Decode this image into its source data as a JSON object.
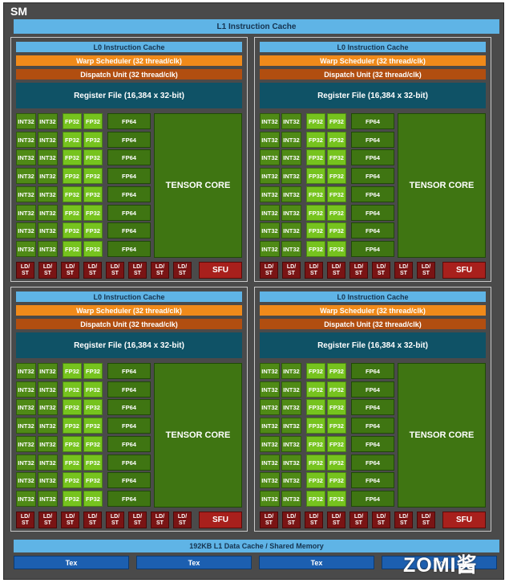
{
  "sm_label": "SM",
  "l1_instruction_cache": "L1 Instruction Cache",
  "quadrants": [
    {
      "l0_cache": "L0 Instruction Cache",
      "warp_scheduler": "Warp Scheduler (32 thread/clk)",
      "dispatch_unit": "Dispatch Unit (32 thread/clk)",
      "register_file": "Register File (16,384 x 32-bit)",
      "tensor_core": "TENSOR CORE",
      "sfu": "SFU"
    },
    {
      "l0_cache": "L0 Instruction Cache",
      "warp_scheduler": "Warp Scheduler (32 thread/clk)",
      "dispatch_unit": "Dispatch Unit (32 thread/clk)",
      "register_file": "Register File (16,384 x 32-bit)",
      "tensor_core": "TENSOR CORE",
      "sfu": "SFU"
    },
    {
      "l0_cache": "L0 Instruction Cache",
      "warp_scheduler": "Warp Scheduler (32 thread/clk)",
      "dispatch_unit": "Dispatch Unit (32 thread/clk)",
      "register_file": "Register File (16,384 x 32-bit)",
      "tensor_core": "TENSOR CORE",
      "sfu": "SFU"
    },
    {
      "l0_cache": "L0 Instruction Cache",
      "warp_scheduler": "Warp Scheduler (32 thread/clk)",
      "dispatch_unit": "Dispatch Unit (32 thread/clk)",
      "register_file": "Register File (16,384 x 32-bit)",
      "tensor_core": "TENSOR CORE",
      "sfu": "SFU"
    }
  ],
  "unit_labels": {
    "int32": "INT32",
    "fp32": "FP32",
    "fp64": "FP64",
    "ld_st_line1": "LD/",
    "ld_st_line2": "ST"
  },
  "l1_data_cache": "192KB L1 Data Cache / Shared Memory",
  "tex_units": [
    "Tex",
    "Tex",
    "Tex",
    "Tex"
  ],
  "watermark": "ZOMI酱",
  "colors": {
    "sm_background": "#4a4a4a",
    "cache": "#5fb4e6",
    "warp_scheduler": "#f08a1a",
    "dispatch_unit": "#b14e10",
    "register_file": "#0f5266",
    "int32": "#4f8a16",
    "fp32": "#76c31e",
    "fp64": "#3f7512",
    "tensor_core": "#3f7512",
    "ld_st": "#7a1414",
    "sfu": "#a8201c",
    "tex": "#1c5fb0"
  }
}
